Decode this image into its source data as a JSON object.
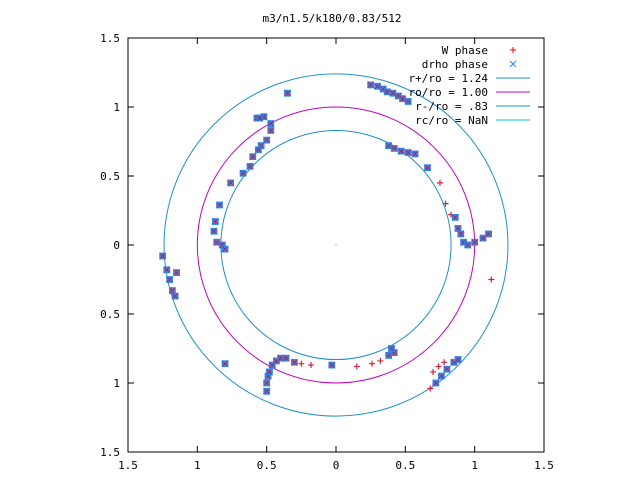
{
  "chart_data": {
    "type": "scatter",
    "title": "m3/n1.5/k180/0.83/512",
    "xlim": [
      -1.5,
      1.5
    ],
    "ylim": [
      -1.5,
      1.5
    ],
    "x_ticks": [
      -1.5,
      -1,
      -0.5,
      0,
      0.5,
      1,
      1.5
    ],
    "y_ticks": [
      -1.5,
      -1,
      -0.5,
      0,
      0.5,
      1,
      1.5
    ],
    "x_tick_labels": [
      "1.5",
      "1",
      "0.5",
      "0",
      "0.5",
      "1",
      "1.5"
    ],
    "y_tick_labels": [
      "1.5",
      "1",
      "0.5",
      "0",
      "0.5",
      "1",
      "1.5"
    ],
    "grid": false,
    "legend_position": "top-right",
    "legend": [
      {
        "label": "W phase",
        "marker": "+",
        "color": "#ff0000"
      },
      {
        "label": "drho phase",
        "marker": "x",
        "color": "#2288ff"
      },
      {
        "label": "r+/ro = 1.24",
        "line": true,
        "color": "#1e90c8"
      },
      {
        "label": "ro/ro = 1.00",
        "line": true,
        "color": "#c000c0"
      },
      {
        "label": "r-/ro = .83",
        "line": true,
        "color": "#1e90c8"
      },
      {
        "label": "rc/ro = NaN",
        "line": true,
        "color": "#00c8c8"
      }
    ],
    "circles": [
      {
        "label": "r+/ro = 1.24",
        "r": 1.24,
        "color": "#1e90c8"
      },
      {
        "label": "ro/ro = 1.00",
        "r": 1.0,
        "color": "#c000c0"
      },
      {
        "label": "r-/ro = .83",
        "r": 0.83,
        "color": "#1e90c8"
      }
    ],
    "series": [
      {
        "name": "W phase",
        "color": "#cc2244",
        "points": [
          [
            -0.35,
            1.1
          ],
          [
            -0.57,
            0.92
          ],
          [
            -0.52,
            0.93
          ],
          [
            -0.55,
            0.92
          ],
          [
            -0.62,
            0.57
          ],
          [
            -0.67,
            0.52
          ],
          [
            -0.76,
            0.45
          ],
          [
            -0.84,
            0.29
          ],
          [
            -0.87,
            0.17
          ],
          [
            -0.88,
            0.1
          ],
          [
            -0.86,
            0.02
          ],
          [
            -0.82,
            0.0
          ],
          [
            -0.8,
            -0.03
          ],
          [
            -0.47,
            0.88
          ],
          [
            -0.47,
            0.83
          ],
          [
            -0.5,
            0.76
          ],
          [
            -0.54,
            0.72
          ],
          [
            -0.56,
            0.69
          ],
          [
            -0.6,
            0.64
          ],
          [
            -1.25,
            -0.08
          ],
          [
            -1.22,
            -0.18
          ],
          [
            -1.2,
            -0.25
          ],
          [
            -1.18,
            -0.33
          ],
          [
            -1.16,
            -0.37
          ],
          [
            -1.15,
            -0.2
          ],
          [
            -0.8,
            -0.86
          ],
          [
            -0.5,
            -1.06
          ],
          [
            -0.5,
            -1.0
          ],
          [
            -0.49,
            -0.95
          ],
          [
            -0.48,
            -0.92
          ],
          [
            -0.46,
            -0.87
          ],
          [
            -0.43,
            -0.84
          ],
          [
            -0.4,
            -0.82
          ],
          [
            -0.36,
            -0.82
          ],
          [
            -0.3,
            -0.85
          ],
          [
            -0.25,
            -0.86
          ],
          [
            -0.18,
            -0.87
          ],
          [
            -0.03,
            -0.87
          ],
          [
            0.15,
            -0.88
          ],
          [
            0.26,
            -0.86
          ],
          [
            0.32,
            -0.84
          ],
          [
            0.38,
            -0.8
          ],
          [
            0.42,
            -0.78
          ],
          [
            0.4,
            -0.75
          ],
          [
            0.68,
            -1.04
          ],
          [
            0.72,
            -1.0
          ],
          [
            0.76,
            -0.95
          ],
          [
            0.8,
            -0.9
          ],
          [
            0.85,
            -0.85
          ],
          [
            0.88,
            -0.83
          ],
          [
            0.7,
            -0.92
          ],
          [
            0.74,
            -0.88
          ],
          [
            0.78,
            -0.85
          ],
          [
            0.38,
            0.72
          ],
          [
            0.42,
            0.7
          ],
          [
            0.47,
            0.68
          ],
          [
            0.52,
            0.67
          ],
          [
            0.57,
            0.66
          ],
          [
            0.66,
            0.56
          ],
          [
            0.75,
            0.45
          ],
          [
            0.79,
            0.3
          ],
          [
            0.83,
            0.22
          ],
          [
            0.86,
            0.2
          ],
          [
            0.88,
            0.12
          ],
          [
            0.9,
            0.08
          ],
          [
            0.92,
            0.02
          ],
          [
            0.95,
            0.0
          ],
          [
            1.0,
            0.02
          ],
          [
            1.06,
            0.05
          ],
          [
            1.1,
            0.08
          ],
          [
            1.12,
            -0.25
          ],
          [
            0.25,
            1.16
          ],
          [
            0.3,
            1.15
          ],
          [
            0.34,
            1.13
          ],
          [
            0.37,
            1.11
          ],
          [
            0.41,
            1.1
          ],
          [
            0.45,
            1.08
          ],
          [
            0.48,
            1.06
          ],
          [
            0.52,
            1.04
          ]
        ]
      },
      {
        "name": "drho phase",
        "color": "#2288ff",
        "points": [
          [
            -0.35,
            1.1
          ],
          [
            -0.57,
            0.92
          ],
          [
            -0.52,
            0.93
          ],
          [
            -0.55,
            0.92
          ],
          [
            -0.62,
            0.57
          ],
          [
            -0.67,
            0.52
          ],
          [
            -0.76,
            0.45
          ],
          [
            -0.84,
            0.29
          ],
          [
            -0.87,
            0.17
          ],
          [
            -0.88,
            0.1
          ],
          [
            -0.86,
            0.02
          ],
          [
            -0.82,
            0.0
          ],
          [
            -0.8,
            -0.03
          ],
          [
            -0.47,
            0.88
          ],
          [
            -0.47,
            0.83
          ],
          [
            -0.5,
            0.76
          ],
          [
            -0.54,
            0.72
          ],
          [
            -0.56,
            0.69
          ],
          [
            -0.6,
            0.64
          ],
          [
            -1.25,
            -0.08
          ],
          [
            -1.22,
            -0.18
          ],
          [
            -1.2,
            -0.25
          ],
          [
            -1.18,
            -0.33
          ],
          [
            -1.16,
            -0.37
          ],
          [
            -1.15,
            -0.2
          ],
          [
            -0.8,
            -0.86
          ],
          [
            -0.5,
            -1.06
          ],
          [
            -0.5,
            -1.0
          ],
          [
            -0.49,
            -0.95
          ],
          [
            -0.48,
            -0.92
          ],
          [
            -0.46,
            -0.87
          ],
          [
            -0.43,
            -0.84
          ],
          [
            -0.4,
            -0.82
          ],
          [
            -0.36,
            -0.82
          ],
          [
            -0.3,
            -0.85
          ],
          [
            -0.03,
            -0.87
          ],
          [
            0.38,
            -0.8
          ],
          [
            0.42,
            -0.78
          ],
          [
            0.4,
            -0.75
          ],
          [
            0.72,
            -1.0
          ],
          [
            0.76,
            -0.95
          ],
          [
            0.8,
            -0.9
          ],
          [
            0.85,
            -0.85
          ],
          [
            0.88,
            -0.83
          ],
          [
            0.38,
            0.72
          ],
          [
            0.42,
            0.7
          ],
          [
            0.47,
            0.68
          ],
          [
            0.52,
            0.67
          ],
          [
            0.57,
            0.66
          ],
          [
            0.66,
            0.56
          ],
          [
            0.86,
            0.2
          ],
          [
            0.88,
            0.12
          ],
          [
            0.9,
            0.08
          ],
          [
            0.92,
            0.02
          ],
          [
            0.95,
            0.0
          ],
          [
            1.0,
            0.02
          ],
          [
            1.06,
            0.05
          ],
          [
            1.1,
            0.08
          ],
          [
            0.25,
            1.16
          ],
          [
            0.3,
            1.15
          ],
          [
            0.34,
            1.13
          ],
          [
            0.37,
            1.11
          ],
          [
            0.41,
            1.1
          ],
          [
            0.45,
            1.08
          ],
          [
            0.48,
            1.06
          ],
          [
            0.52,
            1.04
          ]
        ]
      }
    ]
  }
}
